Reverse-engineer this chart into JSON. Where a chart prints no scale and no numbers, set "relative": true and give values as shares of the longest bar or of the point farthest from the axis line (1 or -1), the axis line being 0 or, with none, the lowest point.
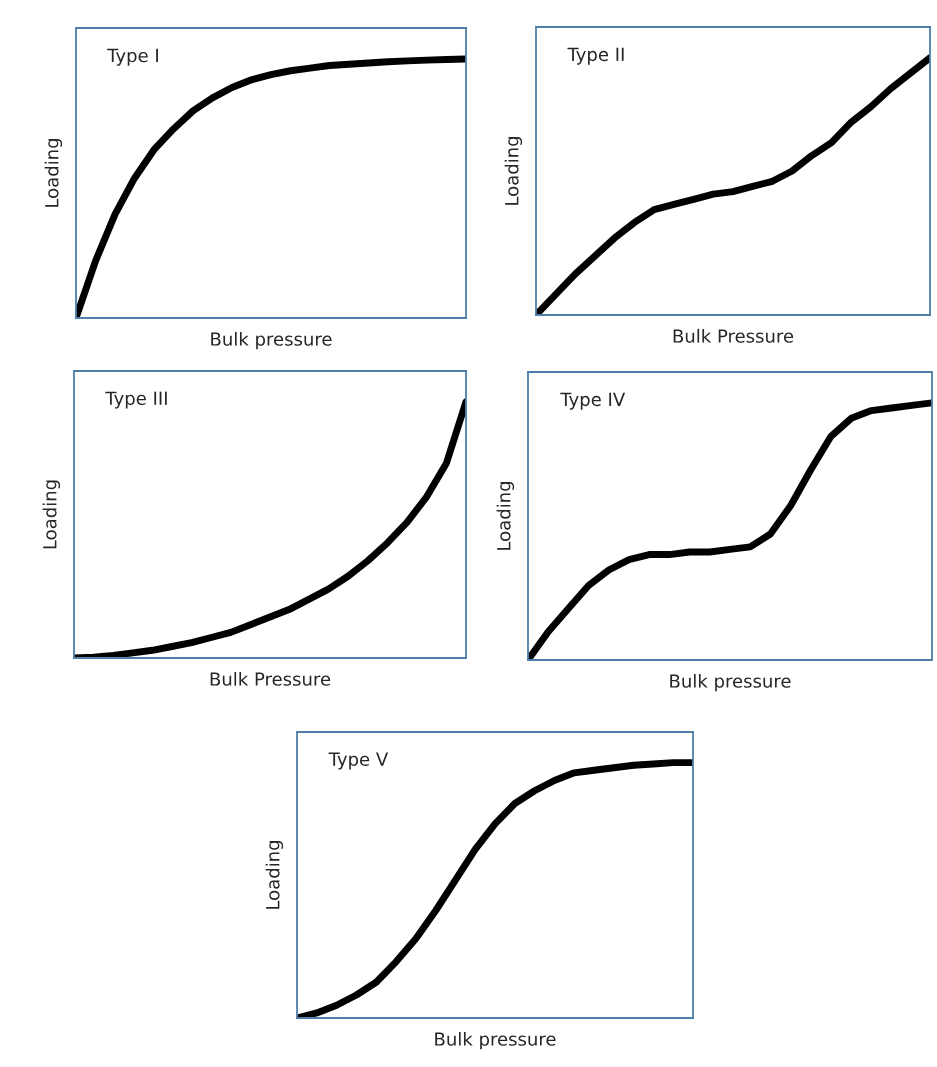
{
  "chart_data": [
    {
      "type": "line",
      "title": "Type I",
      "xlabel": "Bulk pressure",
      "ylabel": "Loading",
      "relative": true,
      "categories": [
        null,
        null,
        null,
        null,
        null,
        null,
        null,
        null,
        null,
        null,
        null,
        null,
        null,
        null,
        null,
        null,
        null,
        null,
        null,
        null,
        null
      ],
      "series": [
        {
          "color": "#000000",
          "values": [
            0,
            0.22,
            0.4,
            0.54,
            0.65,
            0.73,
            0.8,
            0.85,
            0.89,
            0.92,
            0.94,
            0.955,
            0.965,
            0.975,
            0.98,
            0.985,
            0.99,
            0.993,
            0.996,
            0.998,
            1.0
          ]
        }
      ]
    },
    {
      "type": "line",
      "title": "Type II",
      "xlabel": "Bulk Pressure",
      "ylabel": "Loading",
      "relative": true,
      "categories": [
        null,
        null,
        null,
        null,
        null,
        null,
        null,
        null,
        null,
        null,
        null,
        null,
        null,
        null,
        null,
        null,
        null,
        null,
        null,
        null,
        null
      ],
      "series": [
        {
          "color": "#000000",
          "values": [
            0,
            0.08,
            0.16,
            0.23,
            0.3,
            0.36,
            0.41,
            0.43,
            0.45,
            0.47,
            0.48,
            0.5,
            0.52,
            0.56,
            0.62,
            0.67,
            0.75,
            0.81,
            0.88,
            0.94,
            1.0
          ]
        }
      ]
    },
    {
      "type": "line",
      "title": "Type III",
      "xlabel": "Bulk Pressure",
      "ylabel": "Loading",
      "relative": true,
      "categories": [
        null,
        null,
        null,
        null,
        null,
        null,
        null,
        null,
        null,
        null,
        null,
        null,
        null,
        null,
        null,
        null,
        null,
        null,
        null,
        null,
        null
      ],
      "series": [
        {
          "color": "#000000",
          "values": [
            0,
            0.003,
            0.01,
            0.02,
            0.03,
            0.045,
            0.06,
            0.08,
            0.1,
            0.13,
            0.16,
            0.19,
            0.23,
            0.27,
            0.32,
            0.38,
            0.45,
            0.53,
            0.63,
            0.76,
            1.0
          ]
        }
      ]
    },
    {
      "type": "line",
      "title": "Type IV",
      "xlabel": "Bulk pressure",
      "ylabel": "Loading",
      "relative": true,
      "categories": [
        null,
        null,
        null,
        null,
        null,
        null,
        null,
        null,
        null,
        null,
        null,
        null,
        null,
        null,
        null,
        null,
        null,
        null,
        null,
        null,
        null
      ],
      "series": [
        {
          "color": "#000000",
          "values": [
            0,
            0.11,
            0.2,
            0.29,
            0.35,
            0.39,
            0.41,
            0.41,
            0.42,
            0.42,
            0.43,
            0.44,
            0.49,
            0.6,
            0.74,
            0.87,
            0.94,
            0.97,
            0.98,
            0.99,
            1.0
          ]
        }
      ]
    },
    {
      "type": "line",
      "title": "Type V",
      "xlabel": "Bulk pressure",
      "ylabel": "Loading",
      "relative": true,
      "categories": [
        null,
        null,
        null,
        null,
        null,
        null,
        null,
        null,
        null,
        null,
        null,
        null,
        null,
        null,
        null,
        null,
        null,
        null,
        null,
        null,
        null
      ],
      "series": [
        {
          "color": "#000000",
          "values": [
            0,
            0.02,
            0.05,
            0.09,
            0.14,
            0.22,
            0.31,
            0.42,
            0.54,
            0.66,
            0.76,
            0.84,
            0.89,
            0.93,
            0.96,
            0.97,
            0.98,
            0.99,
            0.995,
            1.0,
            1.0
          ]
        }
      ]
    }
  ]
}
